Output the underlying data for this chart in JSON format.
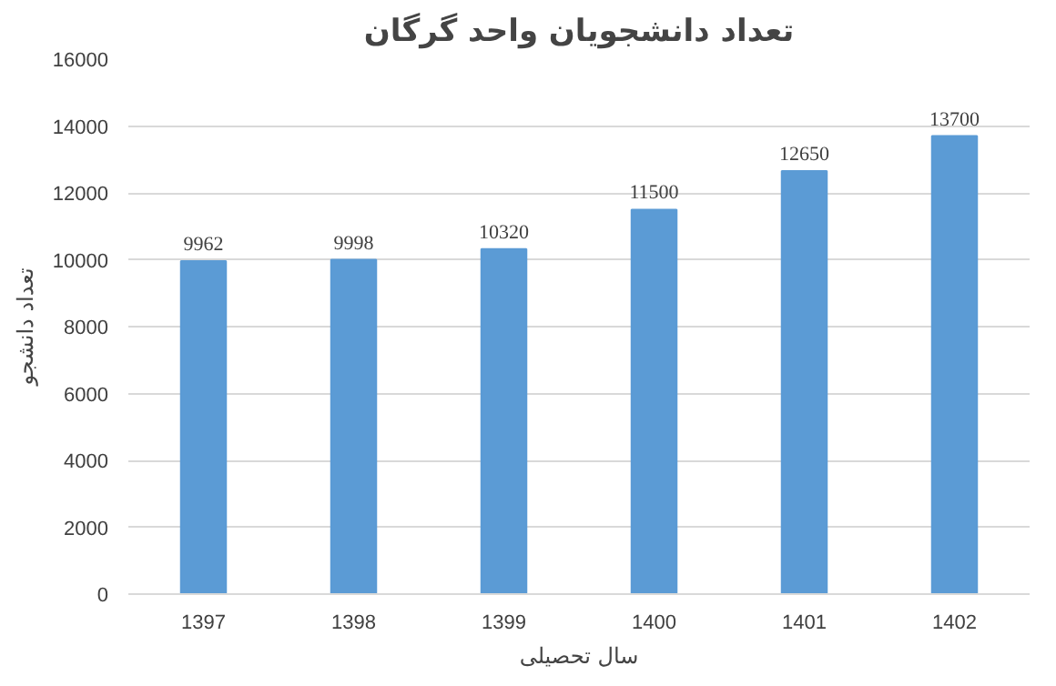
{
  "chart_data": {
    "type": "bar",
    "title": "تعداد دانشجویان واحد گرگان",
    "xlabel": "سال تحصیلی",
    "ylabel": "تعداد دانشجو",
    "categories": [
      "1397",
      "1398",
      "1399",
      "1400",
      "1401",
      "1402"
    ],
    "values": [
      9962,
      9998,
      10320,
      11500,
      12650,
      13700
    ],
    "color": "#5b9bd5",
    "ylim": [
      0,
      16000
    ],
    "yticks": [
      0,
      2000,
      4000,
      6000,
      8000,
      10000,
      12000,
      14000,
      16000
    ],
    "grid": "y",
    "data_labels": true
  }
}
